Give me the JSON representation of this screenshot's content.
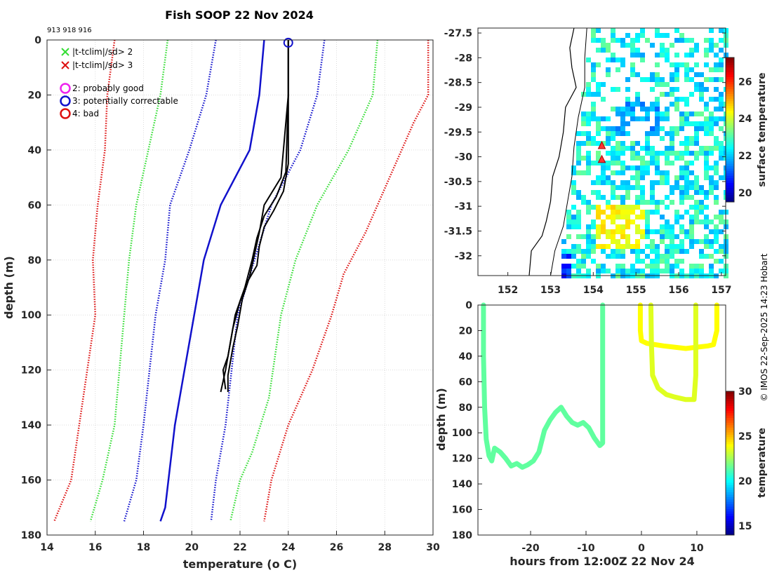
{
  "title": "Fish SOOP 22 Nov 2024",
  "ids": "913 918 916",
  "credit": "© IMOS 22-Sep-2025 14:23 Hobart",
  "colors": {
    "green": "#33dd33",
    "red": "#dd1111",
    "blue": "#1111cc",
    "magenta": "#ee22ee",
    "profile": "#000000",
    "section": "#44dd22",
    "section_warm": "#ccf033"
  },
  "legend": {
    "cross_sd2": "|t-tclim|/sd> 2",
    "cross_sd3": "|t-tclim|/sd> 3",
    "q2": "2: probably good",
    "q3": "3: potentially correctable",
    "q4": "4: bad"
  },
  "chart_data": [
    {
      "type": "line",
      "name": "profile",
      "xlabel": "temperature (",
      "xlabel_sup": "o",
      "xlabel_end": " C)",
      "ylabel": "depth (m)",
      "xlim": [
        14,
        30
      ],
      "ylim": [
        180,
        0
      ],
      "xticks": [
        14,
        16,
        18,
        20,
        22,
        24,
        26,
        28,
        30
      ],
      "yticks": [
        0,
        20,
        40,
        60,
        80,
        100,
        120,
        140,
        160,
        180
      ],
      "grid": true,
      "climatology": [
        {
          "name": "clim-3sd-left",
          "color": "red",
          "style": "dotted",
          "points": [
            [
              16.8,
              0
            ],
            [
              16.5,
              20
            ],
            [
              16.4,
              40
            ],
            [
              16.1,
              60
            ],
            [
              15.9,
              80
            ],
            [
              16.0,
              100
            ],
            [
              15.5,
              130
            ],
            [
              15.0,
              160
            ],
            [
              14.3,
              175
            ]
          ]
        },
        {
          "name": "clim-2sd-left",
          "color": "green",
          "style": "dotted",
          "points": [
            [
              19.0,
              0
            ],
            [
              18.7,
              20
            ],
            [
              18.2,
              40
            ],
            [
              17.7,
              60
            ],
            [
              17.4,
              80
            ],
            [
              17.2,
              100
            ],
            [
              16.8,
              140
            ],
            [
              16.3,
              160
            ],
            [
              15.8,
              175
            ]
          ]
        },
        {
          "name": "clim-1sd-left",
          "color": "blue",
          "style": "dotted",
          "points": [
            [
              21.0,
              0
            ],
            [
              20.6,
              20
            ],
            [
              19.9,
              40
            ],
            [
              19.1,
              60
            ],
            [
              18.9,
              80
            ],
            [
              18.5,
              100
            ],
            [
              18.0,
              140
            ],
            [
              17.7,
              160
            ],
            [
              17.2,
              175
            ]
          ]
        },
        {
          "name": "clim-mean",
          "color": "blue",
          "style": "solid",
          "points": [
            [
              23.0,
              0
            ],
            [
              22.8,
              20
            ],
            [
              22.4,
              40
            ],
            [
              21.2,
              60
            ],
            [
              20.5,
              80
            ],
            [
              20.1,
              100
            ],
            [
              19.7,
              120
            ],
            [
              19.3,
              140
            ],
            [
              18.9,
              170
            ],
            [
              18.7,
              175
            ]
          ]
        },
        {
          "name": "clim-1sd-right",
          "color": "blue",
          "style": "dotted",
          "points": [
            [
              25.5,
              0
            ],
            [
              25.2,
              20
            ],
            [
              24.5,
              40
            ],
            [
              23.3,
              60
            ],
            [
              22.6,
              80
            ],
            [
              21.9,
              100
            ],
            [
              21.4,
              140
            ],
            [
              21.0,
              160
            ],
            [
              20.8,
              175
            ]
          ]
        },
        {
          "name": "clim-2sd-right",
          "color": "green",
          "style": "dotted",
          "points": [
            [
              27.7,
              0
            ],
            [
              27.5,
              20
            ],
            [
              26.5,
              40
            ],
            [
              25.2,
              60
            ],
            [
              24.3,
              80
            ],
            [
              23.7,
              100
            ],
            [
              23.2,
              130
            ],
            [
              22.5,
              150
            ],
            [
              22.0,
              160
            ],
            [
              21.6,
              175
            ]
          ]
        },
        {
          "name": "clim-3sd-right",
          "color": "red",
          "style": "dotted",
          "points": [
            [
              29.8,
              0
            ],
            [
              29.8,
              20
            ],
            [
              29.2,
              30
            ],
            [
              28.2,
              50
            ],
            [
              27.2,
              70
            ],
            [
              26.3,
              85
            ],
            [
              25.8,
              100
            ],
            [
              25.0,
              120
            ],
            [
              24.0,
              140
            ],
            [
              23.3,
              160
            ],
            [
              23.0,
              175
            ]
          ]
        }
      ],
      "profiles": [
        {
          "name": "profile-913",
          "points": [
            [
              24.0,
              0
            ],
            [
              24.0,
              20
            ],
            [
              24.0,
              45
            ],
            [
              23.8,
              55
            ],
            [
              23.4,
              62
            ],
            [
              23.0,
              68
            ],
            [
              22.8,
              75
            ],
            [
              22.7,
              82
            ],
            [
              22.3,
              88
            ],
            [
              22.0,
              95
            ],
            [
              21.7,
              105
            ],
            [
              21.5,
              115
            ],
            [
              21.3,
              120
            ],
            [
              21.4,
              127
            ]
          ]
        },
        {
          "name": "profile-918",
          "points": [
            [
              24.0,
              0
            ],
            [
              24.0,
              20
            ],
            [
              23.9,
              48
            ],
            [
              23.5,
              57
            ],
            [
              23.0,
              64
            ],
            [
              22.7,
              72
            ],
            [
              22.5,
              80
            ],
            [
              22.2,
              90
            ],
            [
              21.8,
              100
            ],
            [
              21.6,
              110
            ],
            [
              21.4,
              120
            ],
            [
              21.2,
              128
            ]
          ]
        },
        {
          "name": "profile-916",
          "points": [
            [
              24.0,
              0
            ],
            [
              24.0,
              20
            ],
            [
              23.7,
              50
            ],
            [
              23.0,
              60
            ],
            [
              22.8,
              70
            ],
            [
              22.6,
              78
            ],
            [
              22.4,
              86
            ],
            [
              22.1,
              94
            ],
            [
              21.9,
              104
            ],
            [
              21.7,
              112
            ],
            [
              21.5,
              122
            ],
            [
              21.5,
              128
            ]
          ]
        }
      ],
      "flag_marker": {
        "x": 24.0,
        "y": 1
      }
    },
    {
      "type": "heatmap",
      "name": "sst-map",
      "xlim": [
        151.3,
        157.1
      ],
      "ylim": [
        -32.4,
        -27.4
      ],
      "xticks": [
        152,
        153,
        154,
        155,
        156,
        157
      ],
      "yticks": [
        -27.5,
        -28,
        -28.5,
        -29,
        -29.5,
        -30,
        -30.5,
        -31,
        -31.5,
        -32
      ],
      "colorbar": {
        "label": "surface temperature",
        "min": 19.5,
        "max": 27.3,
        "ticks": [
          20,
          22,
          24,
          26
        ]
      },
      "stations": [
        [
          154.2,
          -29.78
        ],
        [
          154.2,
          -30.06
        ]
      ]
    },
    {
      "type": "scatter",
      "name": "depth-time-section",
      "xlabel": "hours from 12:00Z 22 Nov 24",
      "ylabel": "depth (m)",
      "xlim": [
        -29.5,
        15.2
      ],
      "ylim": [
        180,
        0
      ],
      "xticks": [
        -20,
        -10,
        0,
        10
      ],
      "yticks": [
        0,
        20,
        40,
        60,
        80,
        100,
        120,
        140,
        160,
        180
      ],
      "colorbar": {
        "label": "temperature",
        "min": 14,
        "max": 30,
        "ticks": [
          15,
          20,
          25,
          30
        ]
      },
      "tracks": [
        {
          "name": "track-913",
          "temp": 21.5,
          "points": [
            [
              -28.5,
              0
            ],
            [
              -28.5,
              40
            ],
            [
              -28.3,
              80
            ],
            [
              -28.0,
              105
            ],
            [
              -27.5,
              118
            ],
            [
              -27.0,
              122
            ],
            [
              -26.5,
              112
            ],
            [
              -25.5,
              115
            ],
            [
              -24.5,
              120
            ],
            [
              -23.5,
              126
            ],
            [
              -22.5,
              124
            ],
            [
              -21.5,
              127
            ],
            [
              -20.5,
              125
            ],
            [
              -19.5,
              122
            ],
            [
              -18.5,
              115
            ],
            [
              -17.5,
              98
            ],
            [
              -16.5,
              90
            ],
            [
              -15.5,
              84
            ],
            [
              -14.5,
              80
            ],
            [
              -13.5,
              87
            ],
            [
              -12.5,
              92
            ],
            [
              -11.5,
              94
            ],
            [
              -10.5,
              92
            ],
            [
              -9.5,
              96
            ],
            [
              -8.5,
              104
            ],
            [
              -7.5,
              110
            ],
            [
              -7.0,
              108
            ],
            [
              -7.0,
              60
            ],
            [
              -7.0,
              0
            ]
          ]
        },
        {
          "name": "track-918",
          "temp": 24.0,
          "points": [
            [
              -0.2,
              0
            ],
            [
              -0.2,
              20
            ],
            [
              0,
              28
            ],
            [
              1,
              30
            ],
            [
              2.5,
              31
            ],
            [
              4,
              32
            ],
            [
              6,
              33
            ],
            [
              8,
              34
            ],
            [
              10,
              33
            ],
            [
              12,
              32
            ],
            [
              13,
              31
            ],
            [
              13.6,
              20
            ],
            [
              13.6,
              0
            ]
          ]
        },
        {
          "name": "track-916",
          "temp": 23.5,
          "points": [
            [
              1.7,
              0
            ],
            [
              1.8,
              30
            ],
            [
              2,
              55
            ],
            [
              3,
              65
            ],
            [
              4.5,
              70
            ],
            [
              6,
              72
            ],
            [
              8,
              74
            ],
            [
              9.5,
              74
            ],
            [
              9.8,
              55
            ],
            [
              9.8,
              30
            ],
            [
              9.8,
              0
            ]
          ]
        }
      ]
    }
  ]
}
